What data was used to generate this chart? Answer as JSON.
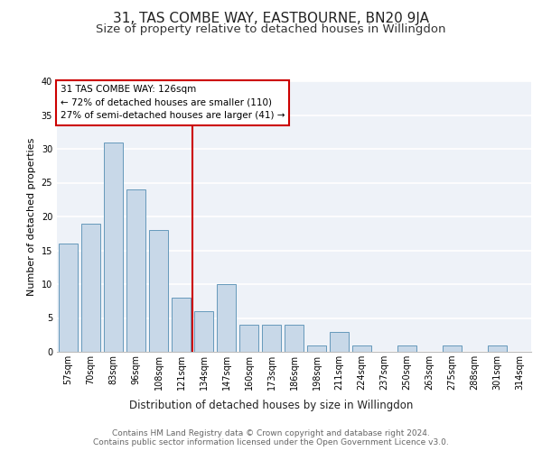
{
  "title1": "31, TAS COMBE WAY, EASTBOURNE, BN20 9JA",
  "title2": "Size of property relative to detached houses in Willingdon",
  "xlabel": "Distribution of detached houses by size in Willingdon",
  "ylabel": "Number of detached properties",
  "categories": [
    "57sqm",
    "70sqm",
    "83sqm",
    "96sqm",
    "108sqm",
    "121sqm",
    "134sqm",
    "147sqm",
    "160sqm",
    "173sqm",
    "186sqm",
    "198sqm",
    "211sqm",
    "224sqm",
    "237sqm",
    "250sqm",
    "263sqm",
    "275sqm",
    "288sqm",
    "301sqm",
    "314sqm"
  ],
  "values": [
    16,
    19,
    31,
    24,
    18,
    8,
    6,
    10,
    4,
    4,
    4,
    1,
    3,
    1,
    0,
    1,
    0,
    1,
    0,
    1,
    0
  ],
  "bar_color": "#c8d8e8",
  "bar_edge_color": "#6699bb",
  "vline_x_index": 5.5,
  "vline_color": "#cc0000",
  "annotation_line1": "31 TAS COMBE WAY: 126sqm",
  "annotation_line2": "← 72% of detached houses are smaller (110)",
  "annotation_line3": "27% of semi-detached houses are larger (41) →",
  "annotation_box_color": "#cc0000",
  "ylim": [
    0,
    40
  ],
  "yticks": [
    0,
    5,
    10,
    15,
    20,
    25,
    30,
    35,
    40
  ],
  "footer1": "Contains HM Land Registry data © Crown copyright and database right 2024.",
  "footer2": "Contains public sector information licensed under the Open Government Licence v3.0.",
  "background_color": "#eef2f8",
  "grid_color": "#ffffff",
  "title1_fontsize": 11,
  "title2_fontsize": 9.5,
  "xlabel_fontsize": 8.5,
  "ylabel_fontsize": 8,
  "tick_fontsize": 7,
  "annotation_fontsize": 7.5,
  "footer_fontsize": 6.5
}
